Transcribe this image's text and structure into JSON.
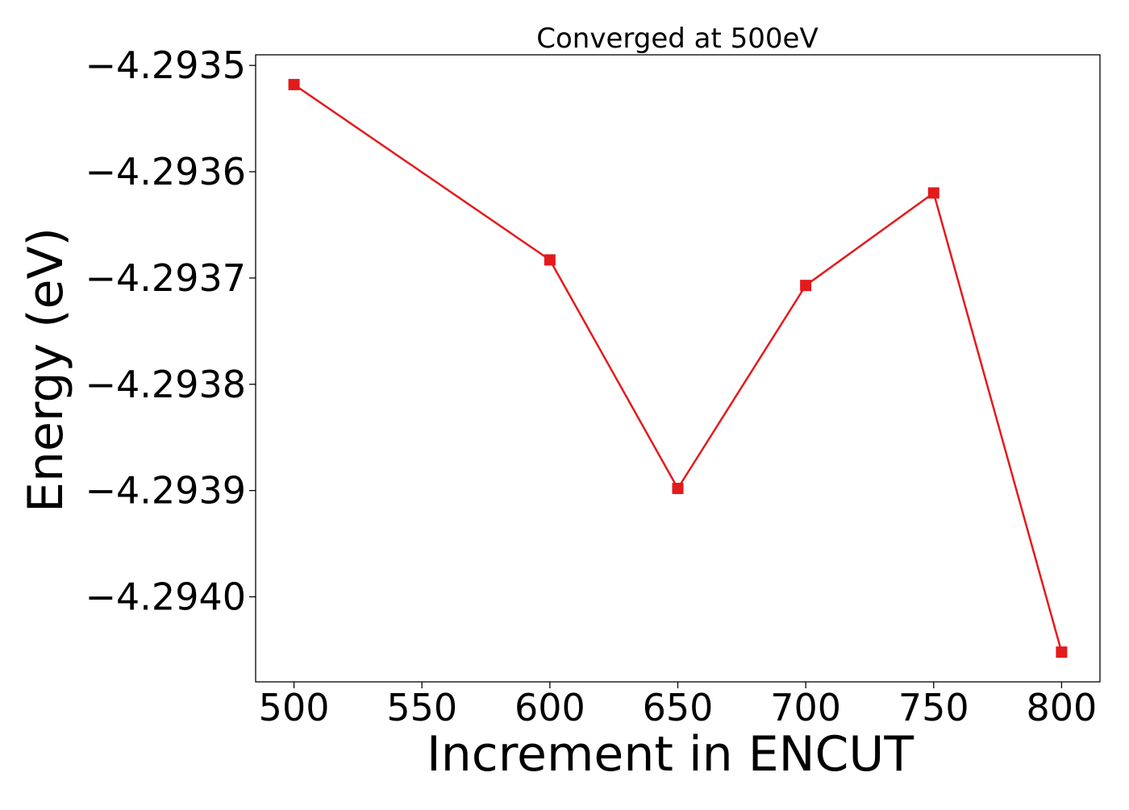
{
  "chart_data": {
    "type": "line",
    "title": "Converged at 500eV",
    "xlabel": "Increment in ENCUT",
    "ylabel": "Energy (eV)",
    "x": [
      500,
      600,
      650,
      700,
      750,
      800
    ],
    "series": [
      {
        "values": [
          -4.293518,
          -4.293683,
          -4.293898,
          -4.293707,
          -4.29362,
          -4.294052
        ],
        "color": "#e41a1c",
        "marker": "square"
      }
    ],
    "xlim": [
      485,
      815
    ],
    "ylim": [
      -4.29408,
      -4.29349
    ],
    "x_ticks": [
      500,
      550,
      600,
      650,
      700,
      750,
      800
    ],
    "x_tick_labels": [
      "500",
      "550",
      "600",
      "650",
      "700",
      "750",
      "800"
    ],
    "y_ticks": [
      -4.2935,
      -4.2936,
      -4.2937,
      -4.2938,
      -4.2939,
      -4.294
    ],
    "y_tick_labels": [
      "−4.2935",
      "−4.2936",
      "−4.2937",
      "−4.2938",
      "−4.2939",
      "−4.2940"
    ],
    "grid": false,
    "legend": "none"
  }
}
